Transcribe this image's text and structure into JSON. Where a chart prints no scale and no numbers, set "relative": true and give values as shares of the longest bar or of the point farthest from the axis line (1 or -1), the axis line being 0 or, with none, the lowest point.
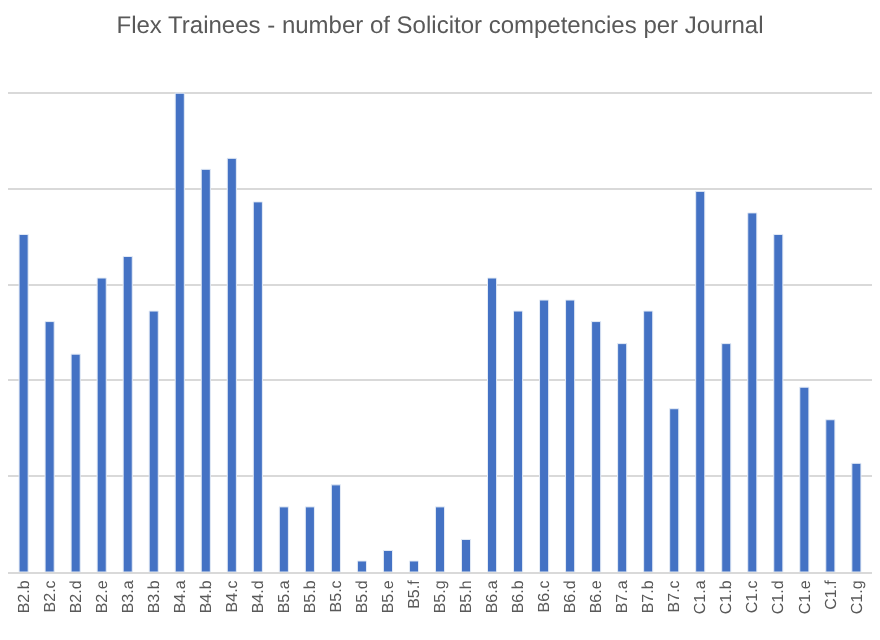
{
  "chart_data": {
    "type": "bar",
    "title": "Flex Trainees - number of Solicitor competencies per Journal",
    "categories": [
      "B2.b",
      "B2.c",
      "B2.d",
      "B2.e",
      "B3.a",
      "B3.b",
      "B4.a",
      "B4.b",
      "B4.c",
      "B4.d",
      "B5.a",
      "B5.b",
      "B5.c",
      "B5.d",
      "B5.e",
      "B5.f",
      "B5.g",
      "B5.h",
      "B6.a",
      "B6.b",
      "B6.c",
      "B6.d",
      "B6.e",
      "B7.a",
      "B7.b",
      "B7.c",
      "C1.a",
      "C1.b",
      "C1.c",
      "C1.d",
      "C1.e",
      "C1.f",
      "C1.g"
    ],
    "values": [
      0.705,
      0.523,
      0.455,
      0.614,
      0.659,
      0.545,
      1,
      0.841,
      0.864,
      0.773,
      0.136,
      0.136,
      0.182,
      0.023,
      0.045,
      0.023,
      0.136,
      0.068,
      0.614,
      0.545,
      0.568,
      0.568,
      0.523,
      0.477,
      0.545,
      0.341,
      0.795,
      0.477,
      0.75,
      0.705,
      0.386,
      0.318,
      0.227
    ],
    "color": "#4472c4",
    "relative": true,
    "grid": "y"
  }
}
